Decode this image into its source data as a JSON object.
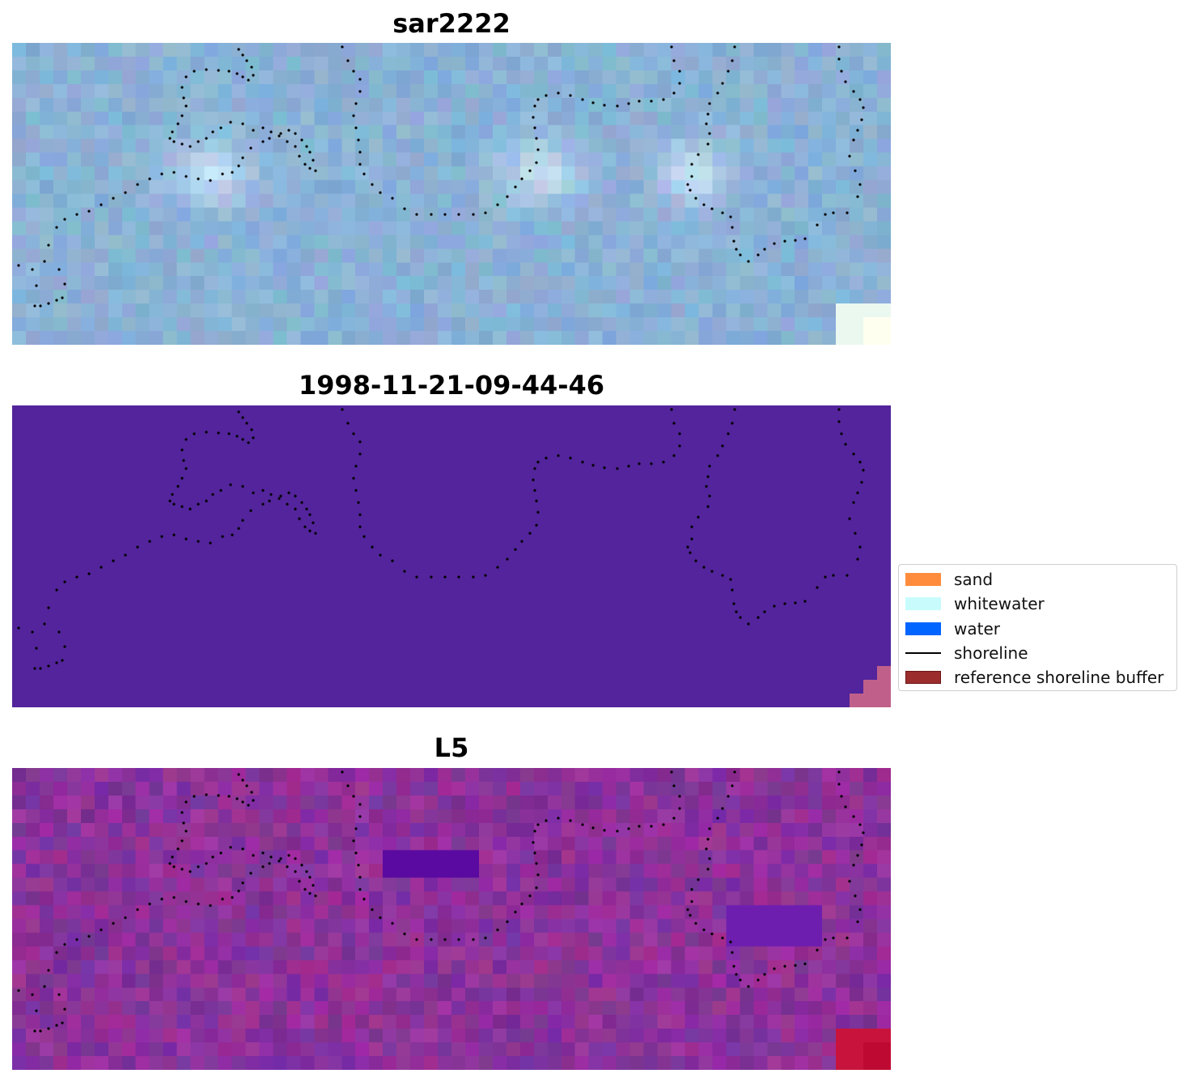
{
  "panels": [
    {
      "title": "sar2222",
      "style": "sar"
    },
    {
      "title": "1998-11-21-09-44-46",
      "style": "class"
    },
    {
      "title": "L5",
      "style": "index"
    }
  ],
  "legend": {
    "items": [
      {
        "label": "sand",
        "color": "#ff8c3c",
        "kind": "patch"
      },
      {
        "label": "whitewater",
        "color": "#c8fcfc",
        "kind": "patch"
      },
      {
        "label": "water",
        "color": "#0064ff",
        "kind": "patch"
      },
      {
        "label": "shoreline",
        "color": "#000000",
        "kind": "line"
      },
      {
        "label": "reference shoreline buffer",
        "color": "#9b2d2d",
        "kind": "patch",
        "edge": "#6e1414"
      }
    ]
  },
  "colors": {
    "class_background": "#53249b",
    "class_corner": "#c0608a",
    "shoreline_dots": "#000000"
  }
}
